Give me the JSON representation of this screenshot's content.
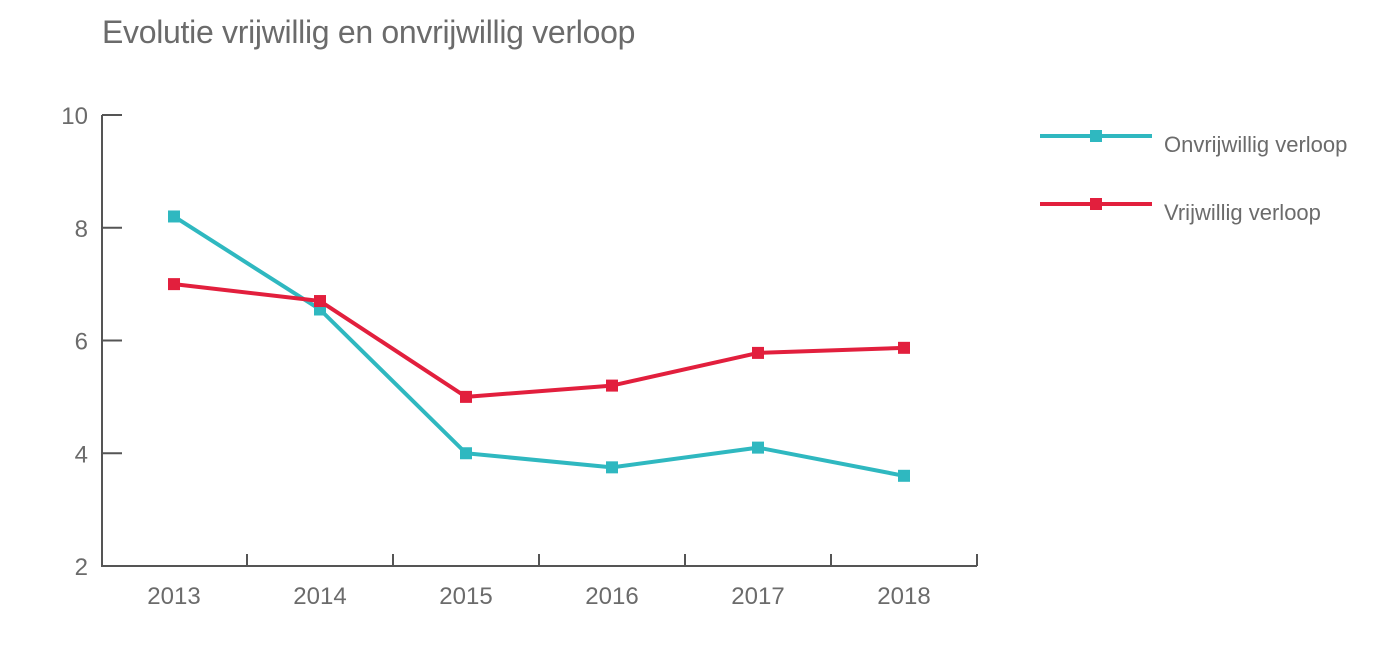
{
  "chart_data": {
    "type": "line",
    "title": "Evolutie vrijwillig en onvrijwillig verloop",
    "xlabel": "",
    "ylabel": "",
    "categories": [
      "2013",
      "2014",
      "2015",
      "2016",
      "2017",
      "2018"
    ],
    "ylim": [
      2,
      10
    ],
    "yticks": [
      2,
      4,
      6,
      8,
      10
    ],
    "grid": false,
    "legend_position": "right",
    "series": [
      {
        "name": "Onvrijwillig verloop",
        "color": "#2fb8c0",
        "marker": "square",
        "values": [
          8.2,
          6.55,
          4.0,
          3.75,
          4.1,
          3.6
        ]
      },
      {
        "name": "Vrijwillig verloop",
        "color": "#e21f3d",
        "marker": "square",
        "values": [
          7.0,
          6.7,
          5.0,
          5.2,
          5.78,
          5.87
        ]
      }
    ]
  }
}
